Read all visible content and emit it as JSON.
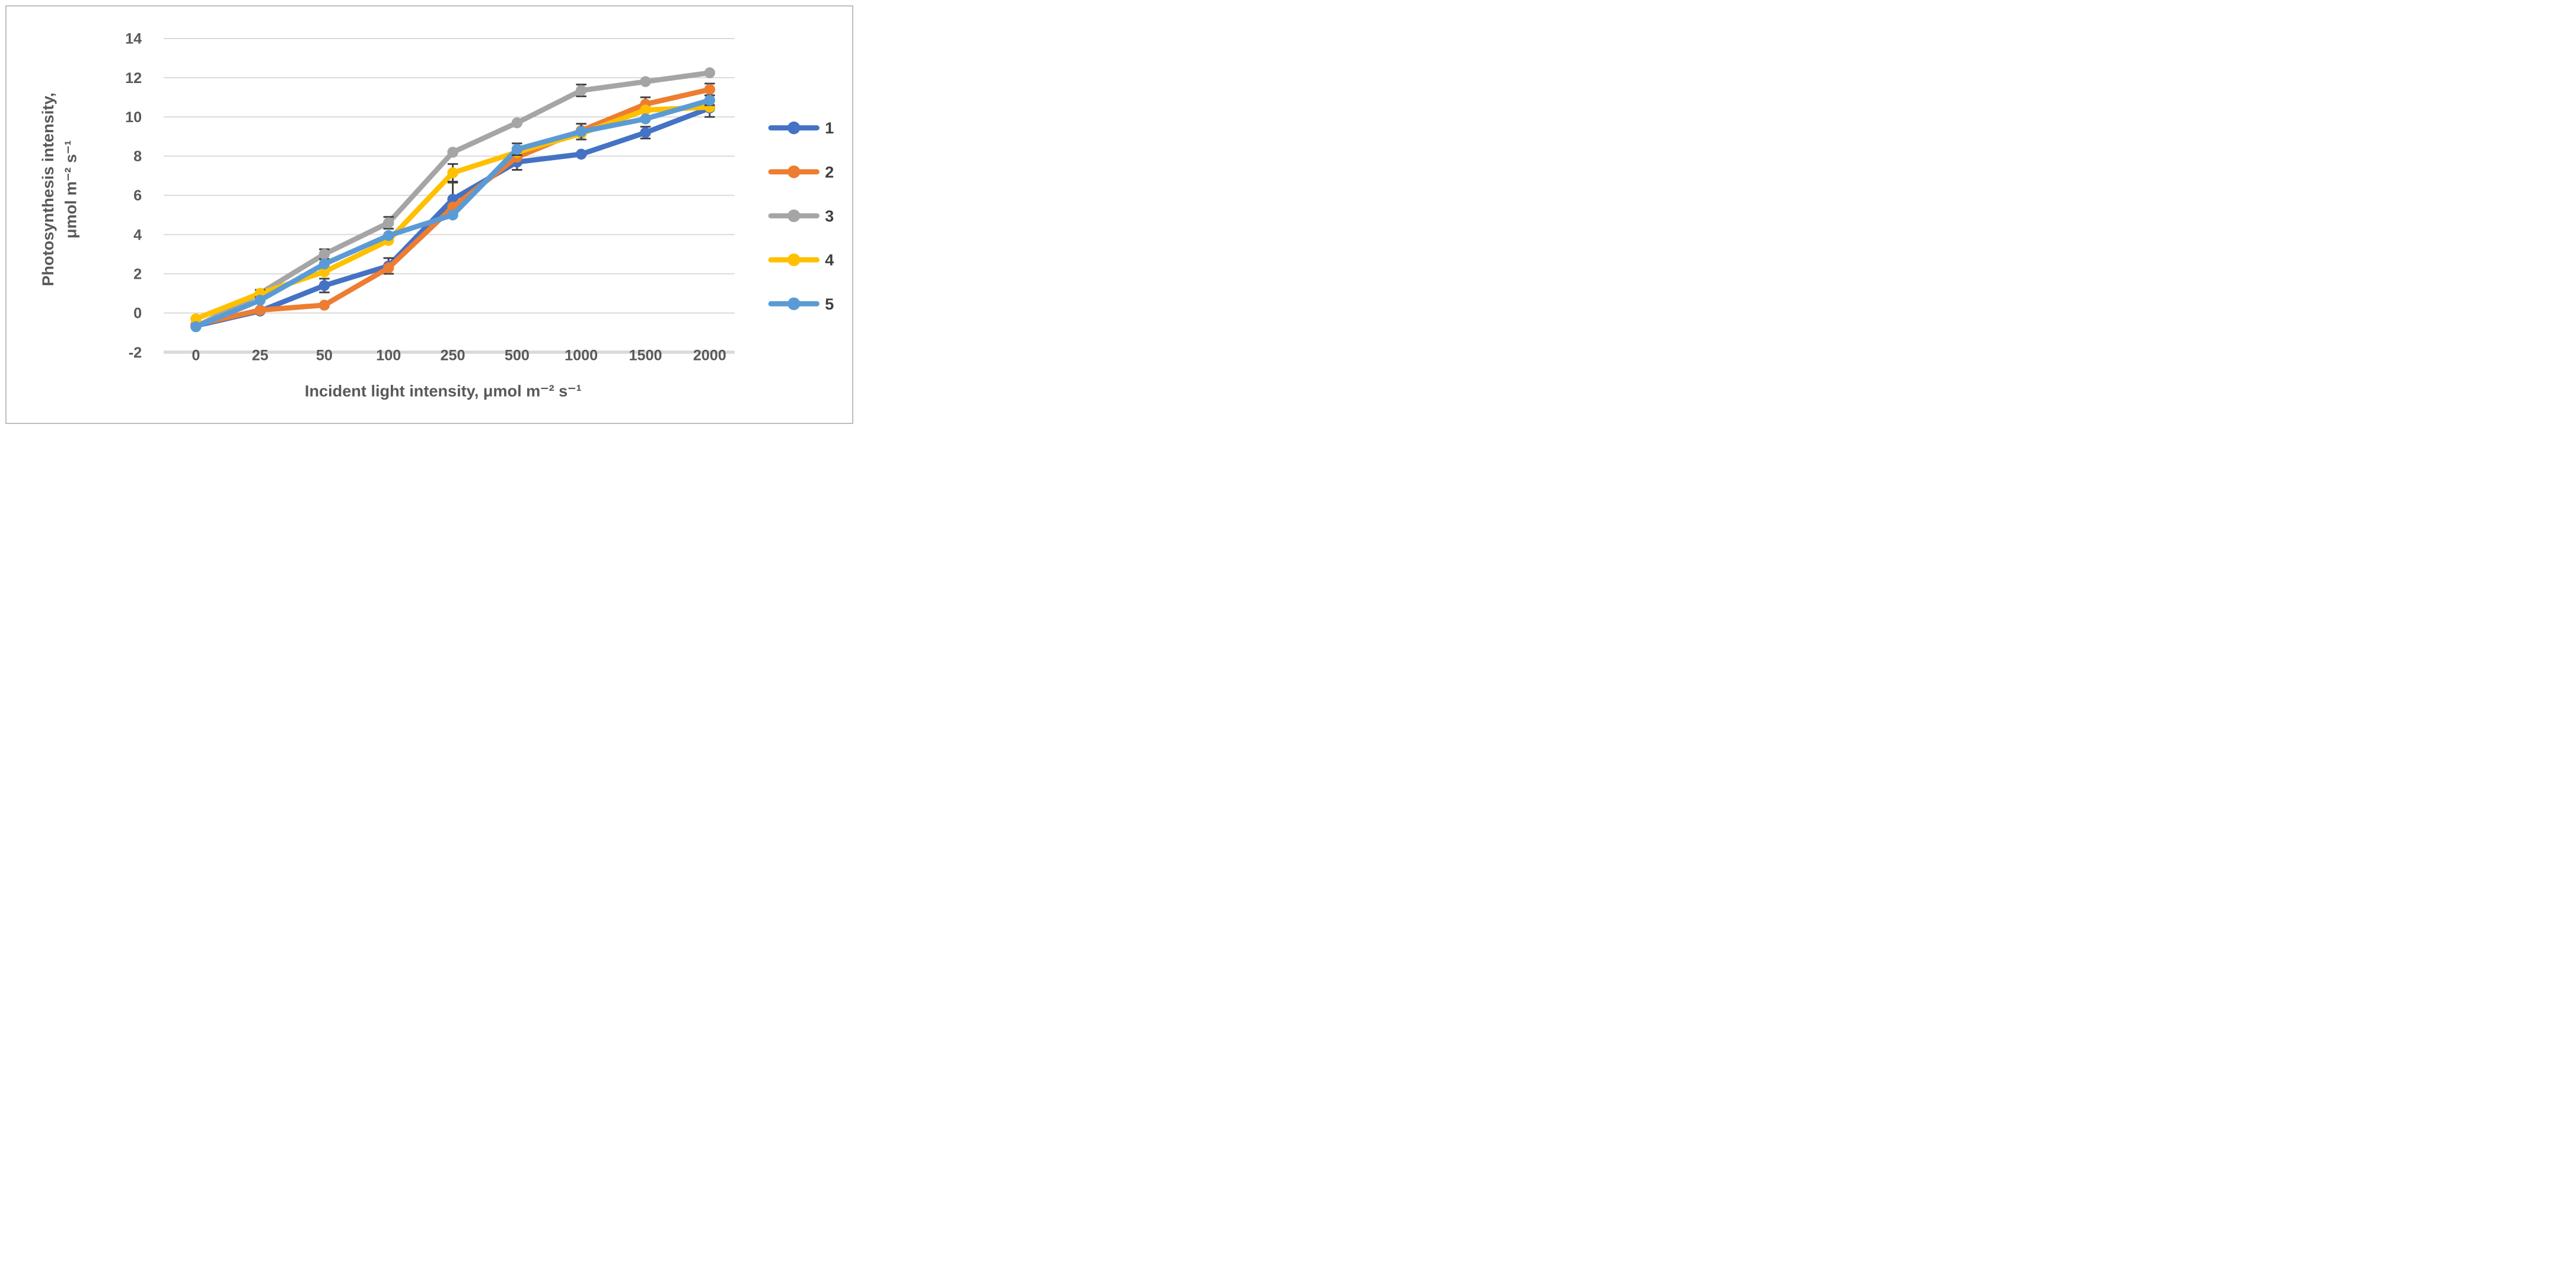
{
  "figure": {
    "background": "#ffffff",
    "border_color": "#bfbfbf",
    "text_color": "#595959",
    "gridline_color": "#d9d9d9",
    "error_bar_color": "#404040"
  },
  "y_axis": {
    "title_line1": "Photosynthesis intensity,",
    "title_line2": "μmol m⁻² s⁻¹",
    "ticks": [
      14,
      12,
      10,
      8,
      6,
      4,
      2,
      0,
      -2
    ],
    "min": -2,
    "max": 14
  },
  "x_axis": {
    "title": "Incident light intensity, μmol m⁻² s⁻¹",
    "categories": [
      "0",
      "25",
      "50",
      "100",
      "250",
      "500",
      "1000",
      "1500",
      "2000"
    ]
  },
  "legend": {
    "position": "right",
    "items": [
      {
        "label": "1",
        "color": "#4472C4"
      },
      {
        "label": "2",
        "color": "#ED7D31"
      },
      {
        "label": "3",
        "color": "#A5A5A5"
      },
      {
        "label": "4",
        "color": "#FFC000"
      },
      {
        "label": "5",
        "color": "#5B9BD5"
      }
    ]
  },
  "chart_data": {
    "type": "line",
    "title": "",
    "xlabel": "Incident light intensity, μmol m⁻² s⁻¹",
    "ylabel": "Photosynthesis intensity, μmol m⁻² s⁻¹",
    "categories": [
      0,
      25,
      50,
      100,
      250,
      500,
      1000,
      1500,
      2000
    ],
    "x_scale": "categorical",
    "ylim": [
      -2,
      14
    ],
    "y_tick_step": 2,
    "grid": "horizontal",
    "markers": "circle",
    "error_bars": true,
    "legend_position": "right",
    "series": [
      {
        "name": "1",
        "color": "#4472C4",
        "values": [
          -0.65,
          0.1,
          1.4,
          2.4,
          5.8,
          7.7,
          8.1,
          9.2,
          10.45
        ],
        "err": [
          0,
          0,
          0.35,
          0.4,
          0.85,
          0.4,
          0,
          0.3,
          0.45
        ]
      },
      {
        "name": "2",
        "color": "#ED7D31",
        "values": [
          -0.6,
          0.15,
          0.4,
          2.3,
          5.4,
          7.95,
          9.3,
          10.65,
          11.4
        ],
        "err": [
          0,
          0,
          0,
          0,
          0,
          0,
          0,
          0.35,
          0.3
        ]
      },
      {
        "name": "3",
        "color": "#A5A5A5",
        "values": [
          -0.7,
          1.0,
          3.0,
          4.6,
          8.2,
          9.7,
          11.35,
          11.8,
          12.25
        ],
        "err": [
          0,
          0,
          0.25,
          0.3,
          0,
          0,
          0.3,
          0,
          0
        ]
      },
      {
        "name": "4",
        "color": "#FFC000",
        "values": [
          -0.3,
          1.0,
          2.1,
          3.7,
          7.15,
          8.2,
          9.15,
          10.35,
          10.5
        ],
        "err": [
          0,
          0.18,
          0,
          0,
          0.45,
          0,
          0,
          0,
          0
        ]
      },
      {
        "name": "5",
        "color": "#5B9BD5",
        "values": [
          -0.7,
          0.65,
          2.5,
          3.95,
          5.0,
          8.35,
          9.25,
          9.9,
          10.85
        ],
        "err": [
          0,
          0,
          0,
          0,
          0,
          0.3,
          0.4,
          0,
          0.25
        ]
      }
    ]
  }
}
